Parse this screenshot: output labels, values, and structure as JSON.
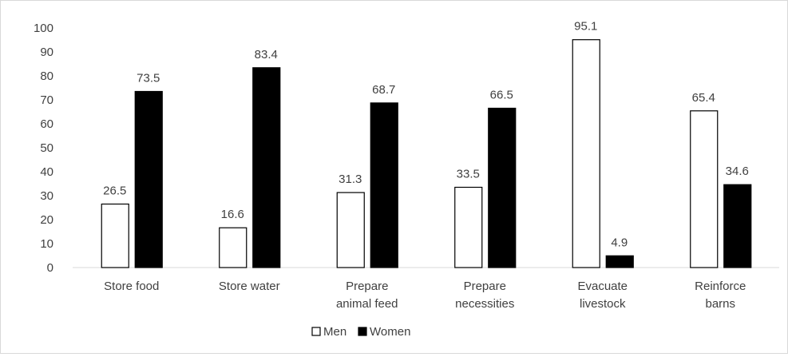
{
  "chart_data": {
    "type": "bar",
    "title": "",
    "xlabel": "",
    "ylabel": "",
    "categories": [
      [
        "Store food"
      ],
      [
        "Store water"
      ],
      [
        "Prepare",
        "animal feed"
      ],
      [
        "Prepare",
        "necessities"
      ],
      [
        "Evacuate",
        "livestock"
      ],
      [
        "Reinforce",
        "barns"
      ]
    ],
    "series": [
      {
        "name": "Men",
        "values": [
          26.5,
          16.6,
          31.3,
          33.5,
          95.1,
          65.4
        ],
        "color": "#ffffff",
        "stroke": "#000000"
      },
      {
        "name": "Women",
        "values": [
          73.5,
          83.4,
          68.7,
          66.5,
          4.9,
          34.6
        ],
        "color": "#000000",
        "stroke": "#000000"
      }
    ],
    "ylim": [
      0,
      100
    ],
    "yticks": [
      0,
      10,
      20,
      30,
      40,
      50,
      60,
      70,
      80,
      90,
      100
    ],
    "grid": false,
    "data_labels": true,
    "legend_position": "bottom"
  }
}
